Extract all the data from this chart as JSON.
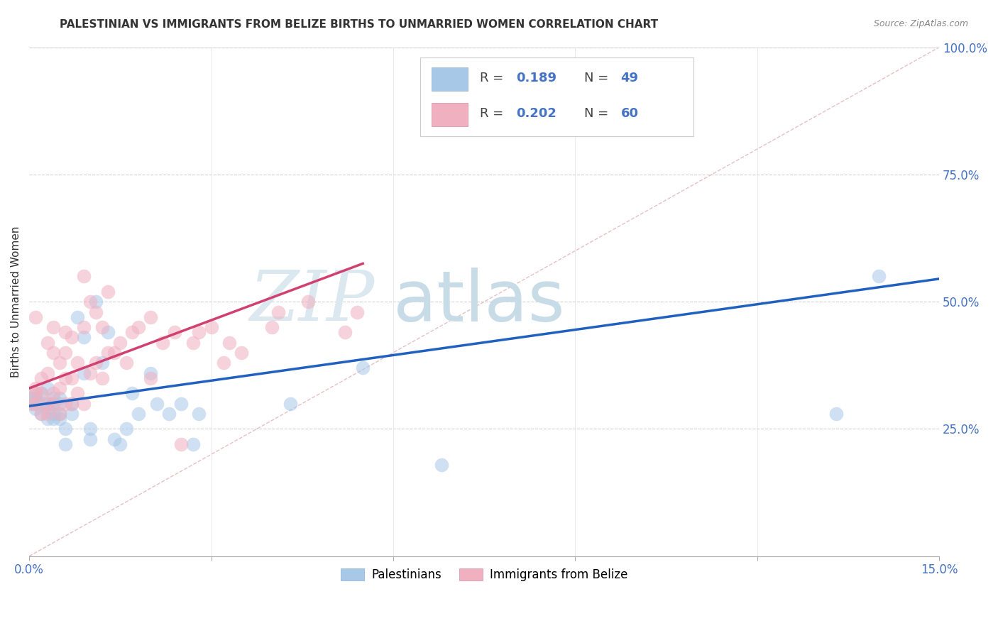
{
  "title": "PALESTINIAN VS IMMIGRANTS FROM BELIZE BIRTHS TO UNMARRIED WOMEN CORRELATION CHART",
  "source": "Source: ZipAtlas.com",
  "ylabel": "Births to Unmarried Women",
  "xmin": 0.0,
  "xmax": 0.15,
  "ymin": 0.0,
  "ymax": 1.0,
  "R_blue": 0.189,
  "N_blue": 49,
  "R_pink": 0.202,
  "N_pink": 60,
  "blue_color": "#a8c8e8",
  "pink_color": "#f0b0c0",
  "blue_line_color": "#2060c0",
  "pink_line_color": "#d04070",
  "diagonal_color": "#e0b0b8",
  "watermark_zip": "ZIP",
  "watermark_atlas": "atlas",
  "blue_line_x0": 0.0,
  "blue_line_y0": 0.295,
  "blue_line_x1": 0.15,
  "blue_line_y1": 0.545,
  "pink_line_x0": 0.0,
  "pink_line_y0": 0.33,
  "pink_line_x1": 0.055,
  "pink_line_y1": 0.575,
  "blue_points_x": [
    0.0005,
    0.0007,
    0.001,
    0.001,
    0.001,
    0.002,
    0.002,
    0.002,
    0.003,
    0.003,
    0.003,
    0.003,
    0.004,
    0.004,
    0.004,
    0.004,
    0.005,
    0.005,
    0.005,
    0.005,
    0.006,
    0.006,
    0.007,
    0.007,
    0.008,
    0.009,
    0.009,
    0.01,
    0.01,
    0.011,
    0.012,
    0.013,
    0.014,
    0.015,
    0.016,
    0.017,
    0.018,
    0.02,
    0.021,
    0.023,
    0.025,
    0.027,
    0.028,
    0.043,
    0.055,
    0.068,
    0.072,
    0.133,
    0.14
  ],
  "blue_points_y": [
    0.31,
    0.3,
    0.29,
    0.31,
    0.32,
    0.28,
    0.3,
    0.32,
    0.27,
    0.29,
    0.3,
    0.33,
    0.27,
    0.28,
    0.3,
    0.31,
    0.27,
    0.28,
    0.3,
    0.31,
    0.22,
    0.25,
    0.28,
    0.3,
    0.47,
    0.36,
    0.43,
    0.23,
    0.25,
    0.5,
    0.38,
    0.44,
    0.23,
    0.22,
    0.25,
    0.32,
    0.28,
    0.36,
    0.3,
    0.28,
    0.3,
    0.22,
    0.28,
    0.3,
    0.37,
    0.18,
    0.95,
    0.28,
    0.55
  ],
  "pink_points_x": [
    0.0005,
    0.001,
    0.001,
    0.001,
    0.001,
    0.002,
    0.002,
    0.002,
    0.003,
    0.003,
    0.003,
    0.003,
    0.004,
    0.004,
    0.004,
    0.004,
    0.005,
    0.005,
    0.005,
    0.006,
    0.006,
    0.006,
    0.006,
    0.007,
    0.007,
    0.007,
    0.008,
    0.008,
    0.009,
    0.009,
    0.009,
    0.01,
    0.01,
    0.011,
    0.011,
    0.012,
    0.012,
    0.013,
    0.013,
    0.014,
    0.015,
    0.016,
    0.017,
    0.018,
    0.02,
    0.02,
    0.022,
    0.024,
    0.025,
    0.027,
    0.028,
    0.03,
    0.032,
    0.033,
    0.035,
    0.04,
    0.041,
    0.046,
    0.052,
    0.054
  ],
  "pink_points_y": [
    0.3,
    0.3,
    0.32,
    0.33,
    0.47,
    0.28,
    0.32,
    0.35,
    0.28,
    0.3,
    0.36,
    0.42,
    0.3,
    0.32,
    0.4,
    0.45,
    0.28,
    0.33,
    0.38,
    0.3,
    0.35,
    0.4,
    0.44,
    0.3,
    0.35,
    0.43,
    0.32,
    0.38,
    0.3,
    0.45,
    0.55,
    0.36,
    0.5,
    0.38,
    0.48,
    0.35,
    0.45,
    0.4,
    0.52,
    0.4,
    0.42,
    0.38,
    0.44,
    0.45,
    0.35,
    0.47,
    0.42,
    0.44,
    0.22,
    0.42,
    0.44,
    0.45,
    0.38,
    0.42,
    0.4,
    0.45,
    0.48,
    0.5,
    0.44,
    0.48
  ],
  "ytick_vals": [
    0.0,
    0.25,
    0.5,
    0.75,
    1.0
  ],
  "ytick_labels": [
    "",
    "25.0%",
    "50.0%",
    "75.0%",
    "100.0%"
  ],
  "xtick_vals": [
    0.0,
    0.03,
    0.06,
    0.09,
    0.12,
    0.15
  ],
  "xtick_labels": [
    "0.0%",
    "",
    "",
    "",
    "",
    "15.0%"
  ]
}
